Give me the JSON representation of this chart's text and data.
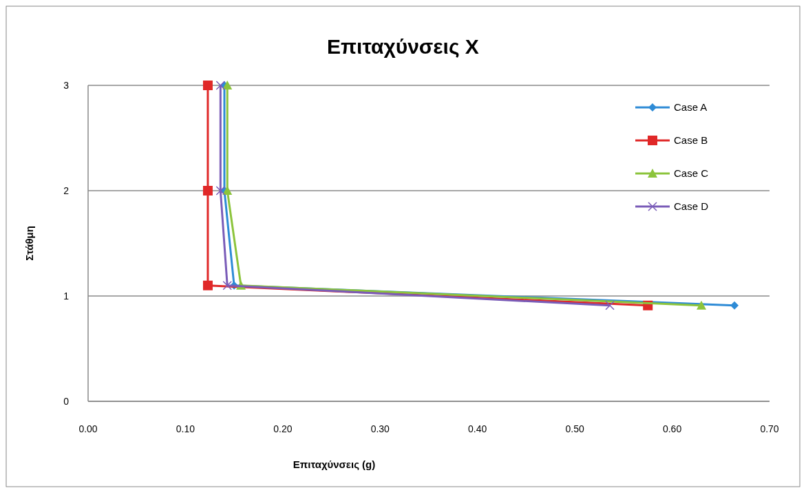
{
  "chart_data": {
    "type": "line",
    "title": "Επιταχύνσεις X",
    "xlabel": "Επιταχύνσεις (g)",
    "ylabel": "Στάθμη",
    "xlim": [
      0,
      0.7
    ],
    "ylim": [
      0,
      3
    ],
    "xticks": [
      {
        "value": 0,
        "label": "0.00"
      },
      {
        "value": 0.1,
        "label": "0.10"
      },
      {
        "value": 0.2,
        "label": "0.20"
      },
      {
        "value": 0.3,
        "label": "0.30"
      },
      {
        "value": 0.4,
        "label": "0.40"
      },
      {
        "value": 0.5,
        "label": "0.50"
      },
      {
        "value": 0.6,
        "label": "0.60"
      },
      {
        "value": 0.7,
        "label": "0.70"
      }
    ],
    "yticks": [
      0,
      1,
      2,
      3
    ],
    "grid": "y",
    "legend": "right",
    "series": [
      {
        "name": "Case A",
        "color": "#2e8bd6",
        "marker": "diamond",
        "x": [
          0.14,
          0.14,
          0.15,
          0.664
        ],
        "values": [
          3,
          2,
          1.1,
          0.91
        ]
      },
      {
        "name": "Case B",
        "color": "#e02828",
        "marker": "square",
        "x": [
          0.123,
          0.123,
          0.123,
          0.575
        ],
        "values": [
          3,
          2,
          1.1,
          0.91
        ]
      },
      {
        "name": "Case C",
        "color": "#8cc43c",
        "marker": "triangle",
        "x": [
          0.143,
          0.143,
          0.157,
          0.63
        ],
        "values": [
          3,
          2,
          1.1,
          0.91
        ]
      },
      {
        "name": "Case D",
        "color": "#7a5cb8",
        "marker": "cross",
        "x": [
          0.136,
          0.136,
          0.143,
          0.536
        ],
        "values": [
          3,
          2,
          1.1,
          0.91
        ]
      }
    ]
  }
}
